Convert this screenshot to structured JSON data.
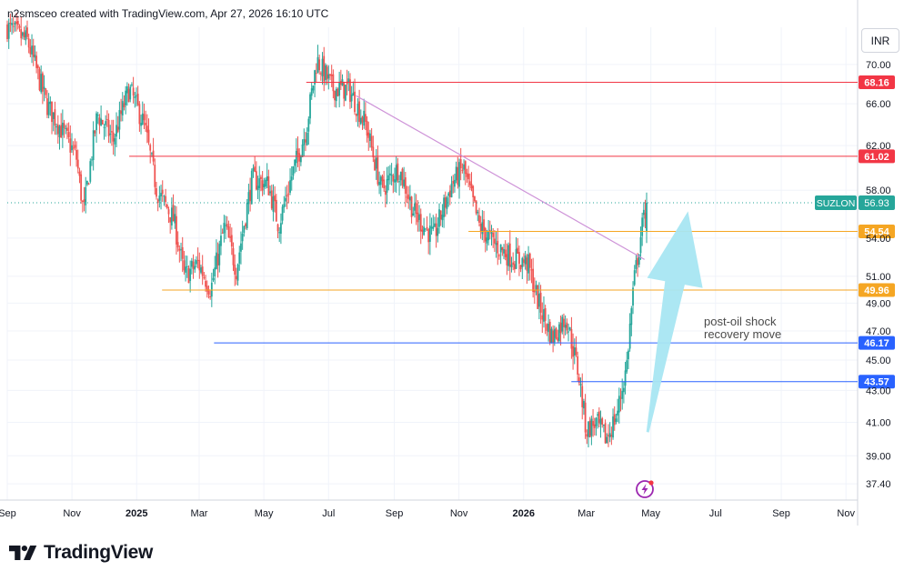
{
  "header": {
    "text": "n2smsceo created with TradingView.com, Apr 27, 2026 16:10 UTC"
  },
  "currency_button": {
    "label": "INR"
  },
  "brand": {
    "name": "TradingView"
  },
  "annotation": {
    "line1": "post-oil shock",
    "line2": "recovery move",
    "arrow_color": "#a8e6f2"
  },
  "colors": {
    "up": "#26a69a",
    "down": "#ef5350",
    "grid": "#f0f3fa",
    "red_level": "#f23645",
    "orange_level": "#f5a623",
    "blue_level": "#2962ff",
    "trendline": "#ce93d8"
  },
  "chart_data": {
    "type": "candlestick",
    "symbol": "SUZLON",
    "last_price": 56.93,
    "y_ticks": [
      37.4,
      39.0,
      41.0,
      43.0,
      45.0,
      47.0,
      49.0,
      51.0,
      54.0,
      58.0,
      62.0,
      66.0,
      70.0
    ],
    "y_range": [
      36.5,
      74.0
    ],
    "y_scale": "log",
    "x_ticks": [
      {
        "label": "Sep",
        "date": "2024-09-01"
      },
      {
        "label": "Nov",
        "date": "2024-11-01"
      },
      {
        "label": "2025",
        "date": "2025-01-01",
        "bold": true
      },
      {
        "label": "Mar",
        "date": "2025-03-01"
      },
      {
        "label": "May",
        "date": "2025-05-01"
      },
      {
        "label": "Jul",
        "date": "2025-07-01"
      },
      {
        "label": "Sep",
        "date": "2025-09-01"
      },
      {
        "label": "Nov",
        "date": "2025-11-01"
      },
      {
        "label": "2026",
        "date": "2026-01-01",
        "bold": true
      },
      {
        "label": "Mar",
        "date": "2026-03-01"
      },
      {
        "label": "May",
        "date": "2026-05-01"
      },
      {
        "label": "Jul",
        "date": "2026-07-01"
      },
      {
        "label": "Sep",
        "date": "2026-09-01"
      },
      {
        "label": "Nov",
        "date": "2026-11-01"
      }
    ],
    "x_range": [
      "2024-09-01",
      "2026-11-12"
    ],
    "levels": [
      {
        "value": 68.16,
        "label": "68.16",
        "color": "red",
        "from": "2025-06-10"
      },
      {
        "value": 61.02,
        "label": "61.02",
        "color": "red",
        "from": "2024-12-25"
      },
      {
        "value": 54.54,
        "label": "54.54",
        "color": "orange",
        "from": "2025-11-10"
      },
      {
        "value": 49.96,
        "label": "49.96",
        "color": "orange",
        "from": "2025-01-25"
      },
      {
        "value": 46.17,
        "label": "46.17",
        "color": "blue",
        "from": "2025-03-15"
      },
      {
        "value": 43.57,
        "label": "43.57",
        "color": "blue",
        "from": "2026-02-15"
      }
    ],
    "trendline": {
      "x1": "2025-07-27",
      "y1": 66.8,
      "x2": "2026-04-25",
      "y2": 52.3
    },
    "price_path": [
      [
        "2024-09-01",
        74.0
      ],
      [
        "2024-09-20",
        72.5
      ],
      [
        "2024-10-08",
        66.0
      ],
      [
        "2024-10-25",
        63.0
      ],
      [
        "2024-11-05",
        61.0
      ],
      [
        "2024-11-12",
        56.0
      ],
      [
        "2024-11-25",
        65.0
      ],
      [
        "2024-12-10",
        62.5
      ],
      [
        "2024-12-25",
        67.5
      ],
      [
        "2025-01-08",
        64.0
      ],
      [
        "2025-01-20",
        58.0
      ],
      [
        "2025-02-05",
        55.5
      ],
      [
        "2025-02-15",
        51.0
      ],
      [
        "2025-02-28",
        52.0
      ],
      [
        "2025-03-12",
        50.0
      ],
      [
        "2025-03-25",
        55.0
      ],
      [
        "2025-04-05",
        51.5
      ],
      [
        "2025-04-20",
        59.0
      ],
      [
        "2025-05-05",
        58.5
      ],
      [
        "2025-05-15",
        55.0
      ],
      [
        "2025-05-28",
        59.5
      ],
      [
        "2025-06-10",
        63.5
      ],
      [
        "2025-06-20",
        70.5
      ],
      [
        "2025-07-05",
        67.5
      ],
      [
        "2025-07-20",
        67.5
      ],
      [
        "2025-08-05",
        64.0
      ],
      [
        "2025-08-20",
        58.0
      ],
      [
        "2025-09-05",
        60.0
      ],
      [
        "2025-09-20",
        56.0
      ],
      [
        "2025-10-08",
        54.0
      ],
      [
        "2025-10-25",
        58.5
      ],
      [
        "2025-11-05",
        60.0
      ],
      [
        "2025-11-20",
        55.0
      ],
      [
        "2025-12-05",
        53.5
      ],
      [
        "2025-12-20",
        52.5
      ],
      [
        "2026-01-05",
        52.0
      ],
      [
        "2026-01-15",
        49.0
      ],
      [
        "2026-01-28",
        46.5
      ],
      [
        "2026-02-10",
        48.0
      ],
      [
        "2026-02-22",
        44.0
      ],
      [
        "2026-03-01",
        40.5
      ],
      [
        "2026-03-10",
        41.0
      ],
      [
        "2026-03-20",
        40.0
      ],
      [
        "2026-03-30",
        41.5
      ],
      [
        "2026-04-08",
        44.5
      ],
      [
        "2026-04-15",
        50.5
      ],
      [
        "2026-04-22",
        54.5
      ],
      [
        "2026-04-27",
        56.93
      ]
    ],
    "annotation_arrow": {
      "tail": [
        "2026-04-28",
        40.4
      ],
      "head": [
        "2026-06-05",
        56.2
      ]
    }
  }
}
